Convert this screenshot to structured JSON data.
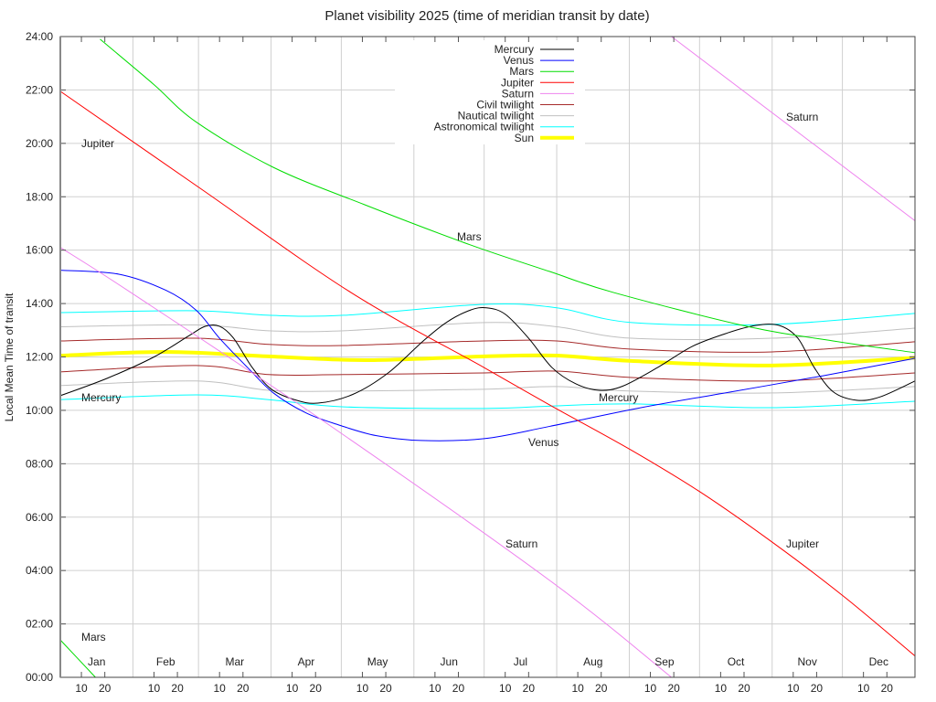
{
  "chart_data": {
    "type": "line",
    "title": "Planet visibility 2025 (time of meridian transit by date)",
    "xlabel": "",
    "ylabel": "Local Mean Time of transit",
    "x_unit": "day of year 2025",
    "xlim": [
      0,
      365
    ],
    "ylim": [
      0,
      24
    ],
    "grid": true,
    "legend_position": "top-center",
    "yticks": [
      "00:00",
      "02:00",
      "04:00",
      "06:00",
      "08:00",
      "10:00",
      "12:00",
      "14:00",
      "16:00",
      "18:00",
      "20:00",
      "22:00",
      "24:00"
    ],
    "months": [
      "Jan",
      "Feb",
      "Mar",
      "Apr",
      "May",
      "Jun",
      "Jul",
      "Aug",
      "Sep",
      "Oct",
      "Nov",
      "Dec"
    ],
    "month_start_days": [
      0,
      31,
      59,
      90,
      120,
      151,
      181,
      212,
      243,
      273,
      304,
      334
    ],
    "day_ticks": [
      "10",
      "20"
    ],
    "series": [
      {
        "name": "Mercury",
        "color": "#000000",
        "width": 1,
        "segments": [
          [
            [
              0,
              10.55
            ],
            [
              20,
              11.2
            ],
            [
              40,
              12.0
            ],
            [
              55,
              12.8
            ],
            [
              62,
              13.15
            ],
            [
              68,
              13.15
            ],
            [
              74,
              12.7
            ],
            [
              82,
              11.6
            ],
            [
              90,
              10.8
            ],
            [
              100,
              10.4
            ],
            [
              110,
              10.27
            ],
            [
              125,
              10.6
            ],
            [
              140,
              11.4
            ],
            [
              155,
              12.6
            ],
            [
              165,
              13.3
            ],
            [
              175,
              13.75
            ],
            [
              182,
              13.84
            ],
            [
              190,
              13.6
            ],
            [
              200,
              12.7
            ],
            [
              210,
              11.6
            ],
            [
              220,
              11.0
            ],
            [
              230,
              10.75
            ],
            [
              240,
              10.9
            ],
            [
              255,
              11.6
            ],
            [
              270,
              12.4
            ],
            [
              285,
              12.9
            ],
            [
              297,
              13.18
            ],
            [
              307,
              13.18
            ],
            [
              315,
              12.7
            ],
            [
              322,
              11.6
            ],
            [
              330,
              10.7
            ],
            [
              340,
              10.38
            ],
            [
              350,
              10.5
            ],
            [
              365,
              11.1
            ]
          ]
        ]
      },
      {
        "name": "Venus",
        "color": "#0000ff",
        "width": 1,
        "segments": [
          [
            [
              0,
              15.25
            ],
            [
              25,
              15.1
            ],
            [
              45,
              14.5
            ],
            [
              58,
              13.75
            ],
            [
              68,
              12.7
            ],
            [
              80,
              11.6
            ],
            [
              91,
              10.65
            ],
            [
              105,
              9.9
            ],
            [
              119,
              9.45
            ],
            [
              135,
              9.05
            ],
            [
              154,
              8.87
            ],
            [
              181,
              8.94
            ],
            [
              209,
              9.4
            ],
            [
              248,
              10.1
            ],
            [
              287,
              10.7
            ],
            [
              326,
              11.3
            ],
            [
              365,
              11.95
            ]
          ]
        ]
      },
      {
        "name": "Mars",
        "color": "#00dd00",
        "width": 1,
        "segments": [
          [
            [
              0,
              1.4
            ],
            [
              15,
              0
            ]
          ],
          [
            [
              17,
              23.9
            ],
            [
              40,
              22.2
            ],
            [
              58,
              20.8
            ],
            [
              91,
              19.1
            ],
            [
              130,
              17.7
            ],
            [
              175,
              16.2
            ],
            [
              209,
              15.2
            ],
            [
              236,
              14.42
            ],
            [
              293,
              13.15
            ],
            [
              330,
              12.6
            ],
            [
              365,
              12.16
            ]
          ]
        ]
      },
      {
        "name": "Jupiter",
        "color": "#ff0000",
        "width": 1,
        "segments": [
          [
            [
              0,
              21.95
            ],
            [
              60,
              18.3
            ],
            [
              124,
              14.42
            ],
            [
              181,
              11.6
            ],
            [
              209,
              10.2
            ],
            [
              244,
              8.5
            ],
            [
              274,
              6.9
            ],
            [
              305,
              5.0
            ],
            [
              335,
              3.0
            ],
            [
              365,
              0.8
            ]
          ]
        ]
      },
      {
        "name": "Saturn",
        "color": "#ee82ee",
        "width": 1,
        "segments": [
          [
            [
              0,
              16.1
            ],
            [
              30,
              14.42
            ],
            [
              112,
              9.62
            ],
            [
              209,
              3.63
            ],
            [
              261,
              0
            ]
          ],
          [
            [
              261,
              24
            ],
            [
              365,
              17.1
            ]
          ]
        ]
      },
      {
        "name": "Civil twilight",
        "color": "#a52a2a",
        "width": 1,
        "segments": [
          [
            [
              0,
              12.6
            ],
            [
              58,
              12.7
            ],
            [
              89,
              12.47
            ],
            [
              121,
              12.43
            ],
            [
              181,
              12.6
            ],
            [
              212,
              12.6
            ],
            [
              244,
              12.29
            ],
            [
              304,
              12.19
            ],
            [
              365,
              12.57
            ]
          ],
          [
            [
              0,
              11.44
            ],
            [
              58,
              11.68
            ],
            [
              89,
              11.34
            ],
            [
              121,
              11.34
            ],
            [
              181,
              11.4
            ],
            [
              212,
              11.47
            ],
            [
              244,
              11.23
            ],
            [
              304,
              11.1
            ],
            [
              365,
              11.4
            ]
          ]
        ]
      },
      {
        "name": "Nautical twilight",
        "color": "#c0c0c0",
        "width": 1,
        "segments": [
          [
            [
              0,
              13.13
            ],
            [
              58,
              13.2
            ],
            [
              89,
              12.98
            ],
            [
              121,
              12.98
            ],
            [
              181,
              13.29
            ],
            [
              212,
              13.13
            ],
            [
              244,
              12.7
            ],
            [
              304,
              12.7
            ],
            [
              365,
              13.08
            ]
          ],
          [
            [
              0,
              10.93
            ],
            [
              58,
              11.1
            ],
            [
              89,
              10.75
            ],
            [
              121,
              10.72
            ],
            [
              181,
              10.79
            ],
            [
              212,
              10.89
            ],
            [
              244,
              10.72
            ],
            [
              304,
              10.65
            ],
            [
              365,
              10.89
            ]
          ]
        ]
      },
      {
        "name": "Astronomical twilight",
        "color": "#00ffff",
        "width": 1,
        "segments": [
          [
            [
              0,
              13.66
            ],
            [
              58,
              13.73
            ],
            [
              89,
              13.56
            ],
            [
              121,
              13.56
            ],
            [
              181,
              13.97
            ],
            [
              212,
              13.84
            ],
            [
              244,
              13.29
            ],
            [
              304,
              13.22
            ],
            [
              365,
              13.63
            ]
          ],
          [
            [
              0,
              10.4
            ],
            [
              58,
              10.58
            ],
            [
              89,
              10.4
            ],
            [
              121,
              10.13
            ],
            [
              181,
              10.07
            ],
            [
              212,
              10.17
            ],
            [
              244,
              10.24
            ],
            [
              304,
              10.1
            ],
            [
              365,
              10.34
            ]
          ]
        ]
      },
      {
        "name": "Sun",
        "color": "#ffff00",
        "width": 4,
        "segments": [
          [
            [
              0,
              12.05
            ],
            [
              45,
              12.19
            ],
            [
              89,
              12.02
            ],
            [
              130,
              11.88
            ],
            [
              181,
              12.02
            ],
            [
              212,
              12.05
            ],
            [
              244,
              11.85
            ],
            [
              304,
              11.68
            ],
            [
              365,
              11.97
            ]
          ]
        ]
      }
    ],
    "curve_labels": [
      "Jupiter",
      "Mars",
      "Saturn",
      "Mercury",
      "Venus",
      "Mercury",
      "Saturn",
      "Jupiter",
      "Mars"
    ]
  }
}
